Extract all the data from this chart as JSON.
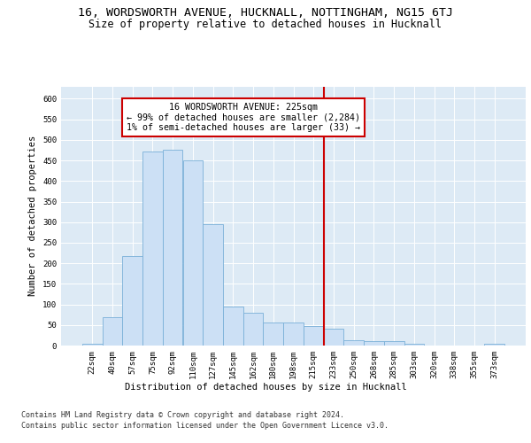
{
  "title_line1": "16, WORDSWORTH AVENUE, HUCKNALL, NOTTINGHAM, NG15 6TJ",
  "title_line2": "Size of property relative to detached houses in Hucknall",
  "xlabel": "Distribution of detached houses by size in Hucknall",
  "ylabel": "Number of detached properties",
  "categories": [
    "22sqm",
    "40sqm",
    "57sqm",
    "75sqm",
    "92sqm",
    "110sqm",
    "127sqm",
    "145sqm",
    "162sqm",
    "180sqm",
    "198sqm",
    "215sqm",
    "233sqm",
    "250sqm",
    "268sqm",
    "285sqm",
    "303sqm",
    "320sqm",
    "338sqm",
    "355sqm",
    "373sqm"
  ],
  "values": [
    5,
    70,
    218,
    472,
    475,
    450,
    295,
    95,
    80,
    55,
    55,
    48,
    42,
    13,
    10,
    10,
    5,
    0,
    0,
    0,
    5
  ],
  "bar_color": "#cce0f5",
  "bar_edge_color": "#7ab0d8",
  "vline_color": "#cc0000",
  "annotation_line1": "16 WORDSWORTH AVENUE: 225sqm",
  "annotation_line2": "← 99% of detached houses are smaller (2,284)",
  "annotation_line3": "1% of semi-detached houses are larger (33) →",
  "annotation_box_color": "#ffffff",
  "annotation_box_edge_color": "#cc0000",
  "ylim": [
    0,
    630
  ],
  "yticks": [
    0,
    50,
    100,
    150,
    200,
    250,
    300,
    350,
    400,
    450,
    500,
    550,
    600
  ],
  "background_color": "#ddeaf5",
  "footer_line1": "Contains HM Land Registry data © Crown copyright and database right 2024.",
  "footer_line2": "Contains public sector information licensed under the Open Government Licence v3.0.",
  "title_fontsize": 9.5,
  "subtitle_fontsize": 8.5,
  "axis_label_fontsize": 7.5,
  "tick_fontsize": 6.5,
  "annotation_fontsize": 7.2,
  "footer_fontsize": 6.0
}
